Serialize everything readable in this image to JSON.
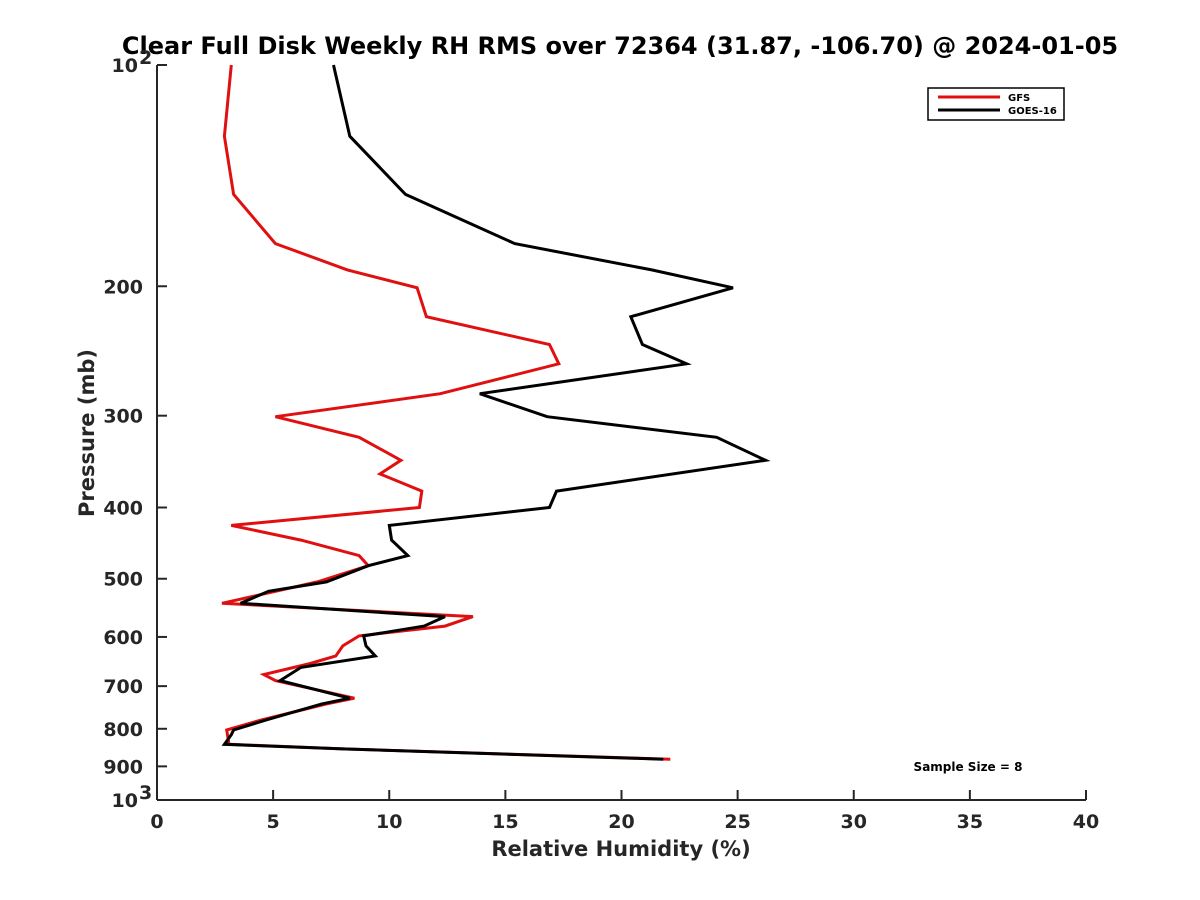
{
  "chart_data": {
    "type": "line",
    "title": "Clear Full Disk Weekly RH RMS over 72364 (31.87, -106.70) @ 2024-01-05",
    "xlabel": "Relative Humidity (%)",
    "ylabel": "Pressure (mb)",
    "xlim": [
      0,
      40
    ],
    "ylim": [
      100,
      1000
    ],
    "yscale": "log",
    "y_reversed": true,
    "x_ticks": [
      0,
      5,
      10,
      15,
      20,
      25,
      30,
      35,
      40
    ],
    "x_tick_labels": [
      "0",
      "5",
      "10",
      "15",
      "20",
      "25",
      "30",
      "35",
      "40"
    ],
    "y_ticks": [
      100,
      200,
      300,
      400,
      500,
      600,
      700,
      800,
      900,
      1000
    ],
    "y_tick_labels": [
      {
        "base": "10",
        "exp": "2"
      },
      {
        "base": "200",
        "exp": ""
      },
      {
        "base": "300",
        "exp": ""
      },
      {
        "base": "400",
        "exp": ""
      },
      {
        "base": "500",
        "exp": ""
      },
      {
        "base": "600",
        "exp": ""
      },
      {
        "base": "700",
        "exp": ""
      },
      {
        "base": "800",
        "exp": ""
      },
      {
        "base": "900",
        "exp": ""
      },
      {
        "base": "10",
        "exp": "3"
      }
    ],
    "grid": false,
    "legend_position": "top-right",
    "annotation": "Sample Size = 8",
    "series": [
      {
        "name": "GFS",
        "color": "#e01010",
        "points": [
          [
            3.2,
            100
          ],
          [
            2.9,
            125
          ],
          [
            3.3,
            150
          ],
          [
            5.1,
            175
          ],
          [
            8.2,
            190
          ],
          [
            11.2,
            201
          ],
          [
            11.6,
            220
          ],
          [
            16.9,
            240
          ],
          [
            17.3,
            255
          ],
          [
            12.2,
            280
          ],
          [
            5.1,
            301
          ],
          [
            8.7,
            321
          ],
          [
            10.5,
            345
          ],
          [
            9.6,
            360
          ],
          [
            11.4,
            380
          ],
          [
            11.3,
            400
          ],
          [
            3.2,
            423
          ],
          [
            6.2,
            443
          ],
          [
            8.7,
            465
          ],
          [
            9.1,
            480
          ],
          [
            6.9,
            505
          ],
          [
            2.8,
            540
          ],
          [
            13.6,
            563
          ],
          [
            12.4,
            580
          ],
          [
            8.7,
            598
          ],
          [
            8.0,
            617
          ],
          [
            7.7,
            637
          ],
          [
            6.6,
            652
          ],
          [
            4.6,
            675
          ],
          [
            5.1,
            688
          ],
          [
            8.5,
            727
          ],
          [
            7.3,
            740
          ],
          [
            4.5,
            778
          ],
          [
            3.0,
            803
          ],
          [
            3.1,
            840
          ],
          [
            8.0,
            852
          ],
          [
            22.1,
            880
          ]
        ]
      },
      {
        "name": "GOES-16",
        "color": "#000000",
        "points": [
          [
            7.6,
            100
          ],
          [
            8.3,
            125
          ],
          [
            10.7,
            150
          ],
          [
            15.4,
            175
          ],
          [
            21.3,
            190
          ],
          [
            24.8,
            201
          ],
          [
            20.4,
            220
          ],
          [
            20.9,
            240
          ],
          [
            22.8,
            255
          ],
          [
            13.9,
            280
          ],
          [
            16.8,
            301
          ],
          [
            24.1,
            321
          ],
          [
            26.2,
            345
          ],
          [
            17.2,
            380
          ],
          [
            16.9,
            400
          ],
          [
            10.0,
            423
          ],
          [
            10.1,
            443
          ],
          [
            10.8,
            465
          ],
          [
            9.1,
            480
          ],
          [
            7.3,
            505
          ],
          [
            4.8,
            520
          ],
          [
            3.6,
            540
          ],
          [
            12.4,
            563
          ],
          [
            11.5,
            580
          ],
          [
            8.9,
            598
          ],
          [
            9.0,
            617
          ],
          [
            9.4,
            637
          ],
          [
            6.2,
            660
          ],
          [
            5.3,
            688
          ],
          [
            8.3,
            727
          ],
          [
            7.1,
            740
          ],
          [
            4.7,
            778
          ],
          [
            3.3,
            803
          ],
          [
            3.2,
            815
          ],
          [
            2.9,
            840
          ],
          [
            8.0,
            852
          ],
          [
            21.8,
            880
          ]
        ]
      }
    ]
  }
}
